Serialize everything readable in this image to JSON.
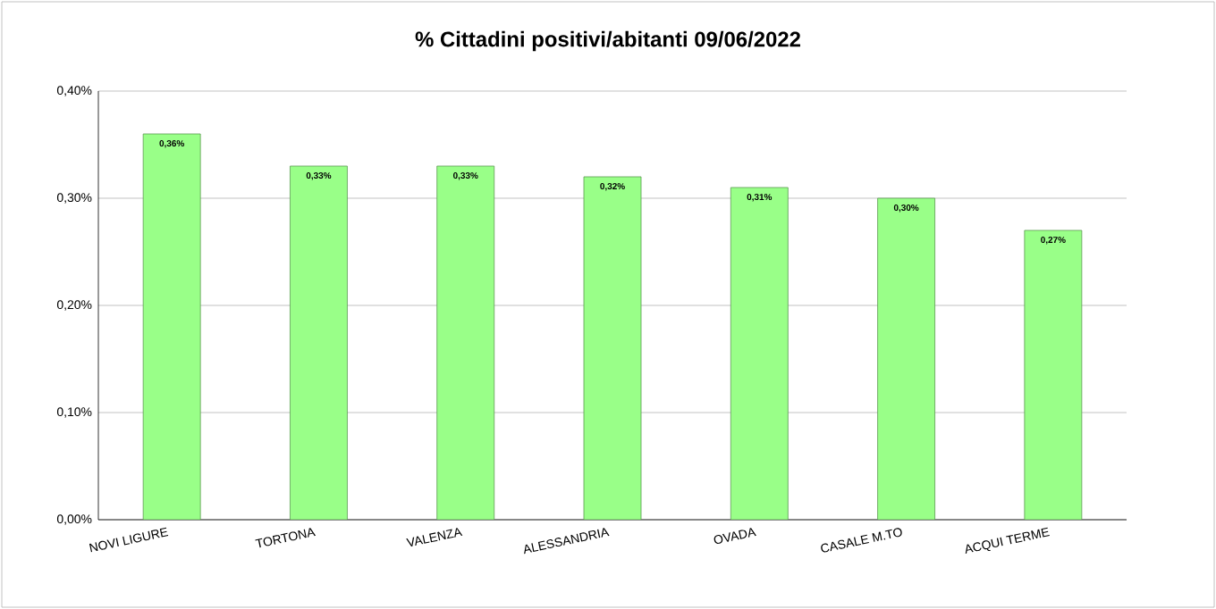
{
  "chart_data": {
    "type": "bar",
    "title": "% Cittadini positivi/abitanti 09/06/2022",
    "categories": [
      "NOVI LIGURE",
      "TORTONA",
      "VALENZA",
      "ALESSANDRIA",
      "OVADA",
      "CASALE M.TO",
      "ACQUI TERME"
    ],
    "values": [
      0.36,
      0.33,
      0.33,
      0.32,
      0.31,
      0.3,
      0.27
    ],
    "value_labels": [
      "0,36%",
      "0,33%",
      "0,33%",
      "0,32%",
      "0,31%",
      "0,30%",
      "0,27%"
    ],
    "color": "#99ff88",
    "ylim": [
      0,
      0.4
    ],
    "yticks": [
      {
        "value": 0,
        "label": "0,00%"
      },
      {
        "value": 0.1,
        "label": "0,10%"
      },
      {
        "value": 0.2,
        "label": "0,20%"
      },
      {
        "value": 0.3,
        "label": "0,30%"
      },
      {
        "value": 0.4,
        "label": "0,40%"
      }
    ],
    "grid": "y"
  }
}
